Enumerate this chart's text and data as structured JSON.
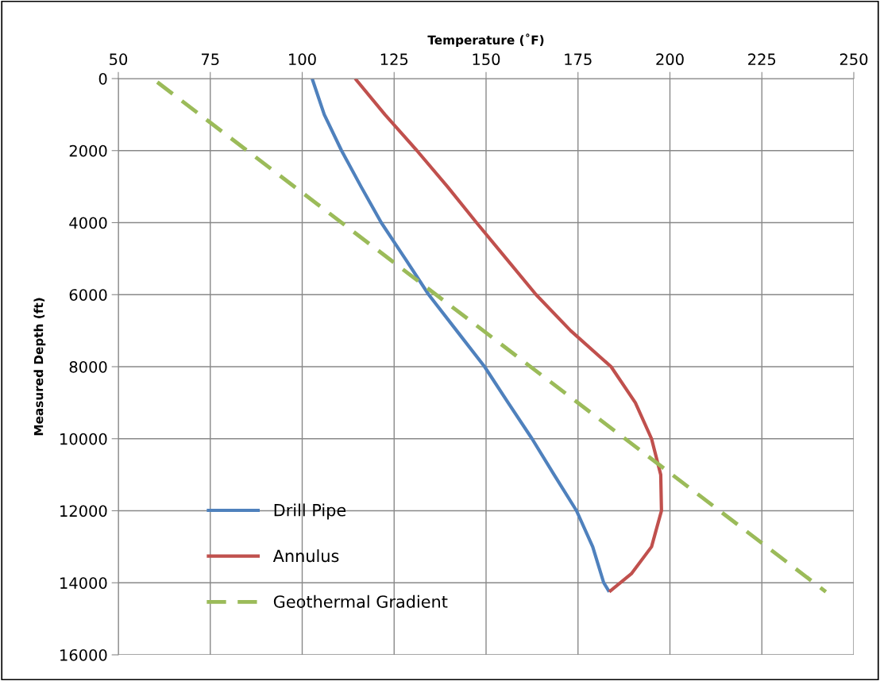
{
  "chart_data": {
    "type": "line",
    "xlabel": "Temperature (˚F)",
    "ylabel": "Measured Depth (ft)",
    "xlim": [
      50,
      250
    ],
    "xticks": [
      50,
      75,
      100,
      125,
      150,
      175,
      200,
      225,
      250
    ],
    "ylim": [
      16000,
      0
    ],
    "yticks": [
      0,
      2000,
      4000,
      6000,
      8000,
      10000,
      12000,
      14000,
      16000
    ],
    "grid": true,
    "legend": "bottom left",
    "marker": "none",
    "series": [
      {
        "name": "Drill Pipe",
        "color": "#4f81bd",
        "line_style": "solid",
        "x": [
          102.7,
          106,
          110.7,
          116,
          121.5,
          128,
          134.4,
          142,
          149.6,
          156,
          162.5,
          168.5,
          174.6,
          179,
          182,
          183.5
        ],
        "values": [
          0,
          1000,
          2000,
          3000,
          4000,
          5000,
          6000,
          7000,
          8000,
          9000,
          10000,
          11000,
          12000,
          13000,
          14000,
          14250
        ]
      },
      {
        "name": "Annulus",
        "color": "#c0504d",
        "line_style": "solid",
        "x": [
          114.4,
          122.5,
          131.2,
          139.5,
          147.4,
          155.5,
          163.6,
          173,
          184,
          190.6,
          195,
          197.5,
          197.7,
          195,
          189.5,
          183.5
        ],
        "values": [
          0,
          1000,
          2000,
          3000,
          4000,
          5000,
          6000,
          7000,
          8000,
          9000,
          10000,
          11000,
          12000,
          13000,
          13750,
          14250
        ]
      },
      {
        "name": "Geothermal Gradient",
        "color": "#9bbb59",
        "line_style": "dashed",
        "x": [
          60.6,
          242.4
        ],
        "values": [
          100,
          14250
        ]
      }
    ]
  }
}
